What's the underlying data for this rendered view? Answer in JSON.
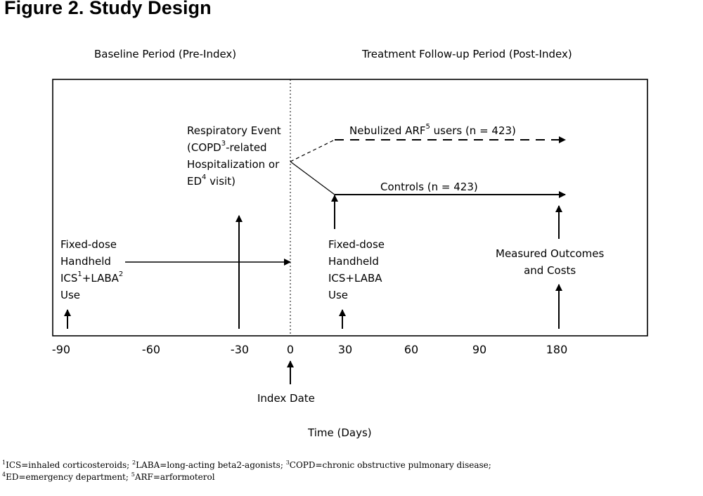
{
  "title": "Figure 2. Study Design",
  "periods": {
    "baseline": "Baseline Period (Pre-Index)",
    "followup": "Treatment Follow-up Period (Post-Index)"
  },
  "nodes": {
    "respiratory_event": {
      "line1": "Respiratory Event",
      "line2_pre": "(COPD",
      "line2_sup": "3",
      "line2_post": "-related",
      "line3": "Hospitalization or",
      "line4_pre": "ED",
      "line4_sup": "4",
      "line4_post": " visit)"
    },
    "nebulized": {
      "pre": "Nebulized ARF",
      "sup": "5",
      "post": " users (n = 423)"
    },
    "controls": "Controls (n = 423)",
    "baseline_use": {
      "line1": "Fixed-dose",
      "line2": "Handheld",
      "line3_a": "ICS",
      "line3_sup1": "1",
      "line3_b": "+LABA",
      "line3_sup2": "2",
      "line4": "Use"
    },
    "followup_use": {
      "line1": "Fixed-dose",
      "line2": "Handheld",
      "line3": "ICS+LABA",
      "line4": "Use"
    },
    "outcomes": {
      "line1": "Measured Outcomes",
      "line2": "and Costs"
    },
    "index_date": "Index Date"
  },
  "axis": {
    "ticks": [
      "-90",
      "-60",
      "-30",
      "0",
      "30",
      "60",
      "90",
      "180"
    ],
    "label": "Time (Days)"
  },
  "footnotes": [
    {
      "sup": "1",
      "text": "ICS=inhaled corticosteroids; "
    },
    {
      "sup": "2",
      "text": "LABA=long-acting beta2-agonists; "
    },
    {
      "sup": "3",
      "text": "COPD=chronic obstructive pulmonary disease;"
    },
    {
      "sup": "4",
      "text": "ED=emergency department; "
    },
    {
      "sup": "5",
      "text": "ARF=arformoterol"
    }
  ]
}
